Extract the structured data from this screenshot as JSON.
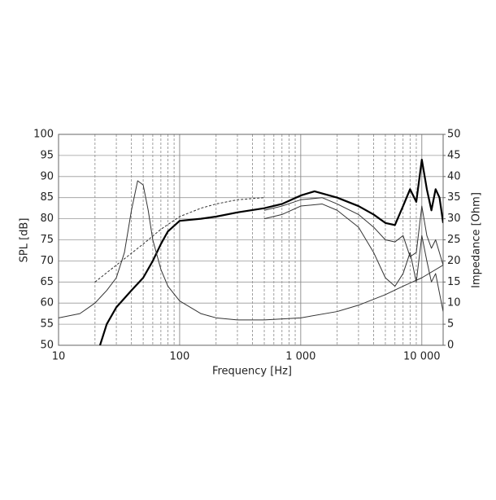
{
  "chart_data": {
    "type": "line",
    "xlabel": "Frequency [Hz]",
    "ylabel": "SPL [dB]",
    "y2label": "Impedance [Ohm]",
    "xscale": "log",
    "xlim": [
      10,
      15000
    ],
    "xticks": [
      10,
      100,
      {
        "value": 1000,
        "label": "1 000"
      },
      {
        "value": 10000,
        "label": "10 000"
      }
    ],
    "xminorticks": [
      20,
      30,
      40,
      50,
      60,
      70,
      80,
      90,
      200,
      300,
      400,
      500,
      600,
      700,
      800,
      900,
      2000,
      3000,
      4000,
      5000,
      6000,
      7000,
      8000,
      9000
    ],
    "ylim": [
      50,
      100
    ],
    "yticks": [
      50,
      55,
      60,
      65,
      70,
      75,
      80,
      85,
      90,
      95,
      100
    ],
    "y2lim": [
      0,
      50
    ],
    "y2ticks": [
      0,
      5,
      10,
      15,
      20,
      25,
      30,
      35,
      40,
      45,
      50
    ],
    "grid": true,
    "series": [
      {
        "color": "#000000",
        "line_width": 2.2,
        "dash": false,
        "x": [
          22,
          25,
          30,
          40,
          50,
          60,
          70,
          80,
          100,
          150,
          200,
          300,
          500,
          700,
          1000,
          1300,
          2000,
          3000,
          4000,
          5000,
          6000,
          7000,
          8000,
          9000,
          10000,
          11000,
          12000,
          13000,
          14000,
          15000
        ],
        "values": [
          50,
          55,
          59,
          63,
          66,
          70,
          74,
          77,
          79.5,
          80,
          80.5,
          81.5,
          82.5,
          83.5,
          85.5,
          86.5,
          85,
          83,
          81,
          79,
          78.5,
          83,
          87,
          84,
          94,
          87,
          82,
          87,
          85,
          79
        ]
      },
      {
        "color": "#333333",
        "line_width": 1,
        "dash": false,
        "x": [
          500,
          700,
          1000,
          1500,
          2000,
          3000,
          4000,
          5000,
          6000,
          7000,
          8000,
          9000,
          10000,
          11000,
          12000,
          13000,
          15000
        ],
        "values": [
          82,
          83,
          84.5,
          85,
          83.5,
          81,
          78,
          75,
          74.5,
          76,
          71,
          72,
          83,
          76,
          73,
          75,
          69
        ]
      },
      {
        "color": "#333333",
        "line_width": 1,
        "dash": false,
        "x": [
          500,
          700,
          1000,
          1500,
          2000,
          3000,
          4000,
          5000,
          6000,
          7000,
          8000,
          9000,
          10000,
          11000,
          12000,
          13000,
          15000
        ],
        "values": [
          80,
          81,
          83,
          83.5,
          82,
          78,
          72,
          66,
          64,
          67,
          72,
          65,
          76,
          70,
          65,
          67,
          58
        ]
      },
      {
        "color": "#333333",
        "line_width": 1,
        "dash": true,
        "x": [
          20,
          30,
          50,
          70,
          100,
          150,
          200,
          300,
          500
        ],
        "values": [
          65,
          69,
          74,
          77.5,
          80.5,
          82.5,
          83.5,
          84.5,
          85
        ]
      },
      {
        "color": "#333333",
        "line_width": 1,
        "dash": false,
        "axis": "y2",
        "x": [
          10,
          15,
          20,
          25,
          30,
          35,
          40,
          45,
          50,
          55,
          60,
          70,
          80,
          100,
          150,
          200,
          300,
          500,
          1000,
          2000,
          3000,
          5000,
          7000,
          10000,
          15000
        ],
        "values": [
          6.5,
          7.5,
          10,
          13,
          16,
          22,
          32,
          39,
          38,
          32,
          25,
          18,
          14,
          10.5,
          7.5,
          6.5,
          6,
          6,
          6.5,
          8,
          9.5,
          12,
          14,
          16,
          19
        ]
      }
    ]
  }
}
